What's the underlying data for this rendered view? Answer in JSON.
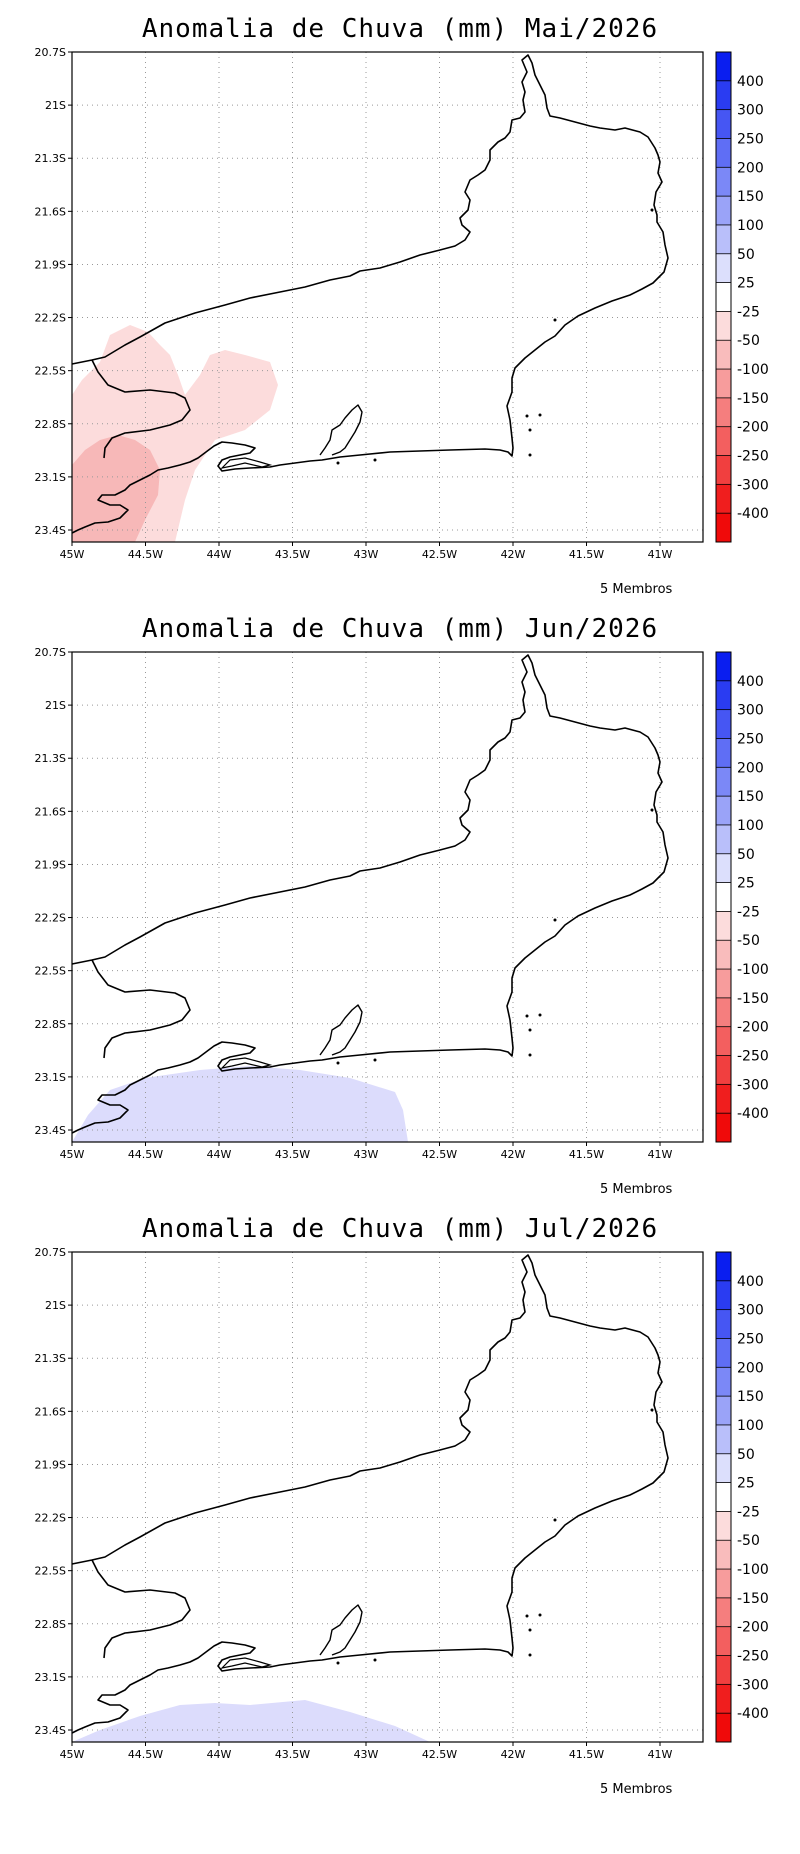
{
  "panels": [
    {
      "title": "Anomalia de Chuva (mm) Mai/2026",
      "footer": "5 Membros",
      "anomaly_regions": [
        {
          "level": "-50 to -25",
          "color": "#fcdcdc",
          "area": "western interior near 44.5W-43.8W, 22.1S-23.4S"
        },
        {
          "level": "-100 to -50",
          "color": "#f7b8b8",
          "area": "southwest coast near 44.8W-44.3W, 23.0S-23.5S"
        }
      ]
    },
    {
      "title": "Anomalia de Chuva (mm) Jun/2026",
      "footer": "5 Membros",
      "anomaly_regions": [
        {
          "level": "25 to 50",
          "color": "#dcdcfc",
          "area": "southern coast 44.8W-42.7W, 23.0S-23.5S"
        }
      ]
    },
    {
      "title": "Anomalia de Chuva (mm) Jul/2026",
      "footer": "5 Membros",
      "anomaly_regions": [
        {
          "level": "25 to 50",
          "color": "#dcdcfc",
          "area": "southern coast 44.6W-42.5W, 23.2S-23.5S"
        }
      ]
    }
  ],
  "lat_labels": [
    "20.7S",
    "21S",
    "21.3S",
    "21.6S",
    "21.9S",
    "22.2S",
    "22.5S",
    "22.8S",
    "23.1S",
    "23.4S"
  ],
  "lon_labels": [
    "45W",
    "44.5W",
    "44W",
    "43.5W",
    "43W",
    "42.5W",
    "42W",
    "41.5W",
    "41W"
  ],
  "colorbar": {
    "labels": [
      "400",
      "300",
      "250",
      "200",
      "150",
      "100",
      "50",
      "25",
      "-25",
      "-50",
      "-100",
      "-150",
      "-200",
      "-250",
      "-300",
      "-400"
    ],
    "colors": [
      "#0a1ef0",
      "#2a3cf2",
      "#4656f3",
      "#5f6ef5",
      "#7b88f7",
      "#9aa3f8",
      "#b9bffa",
      "#dcdffc",
      "#ffffff",
      "#fcdcdc",
      "#f9bcbc",
      "#f79c9c",
      "#f57e7e",
      "#f35f5f",
      "#f13f3f",
      "#f01e1e",
      "#f00a0a"
    ]
  }
}
